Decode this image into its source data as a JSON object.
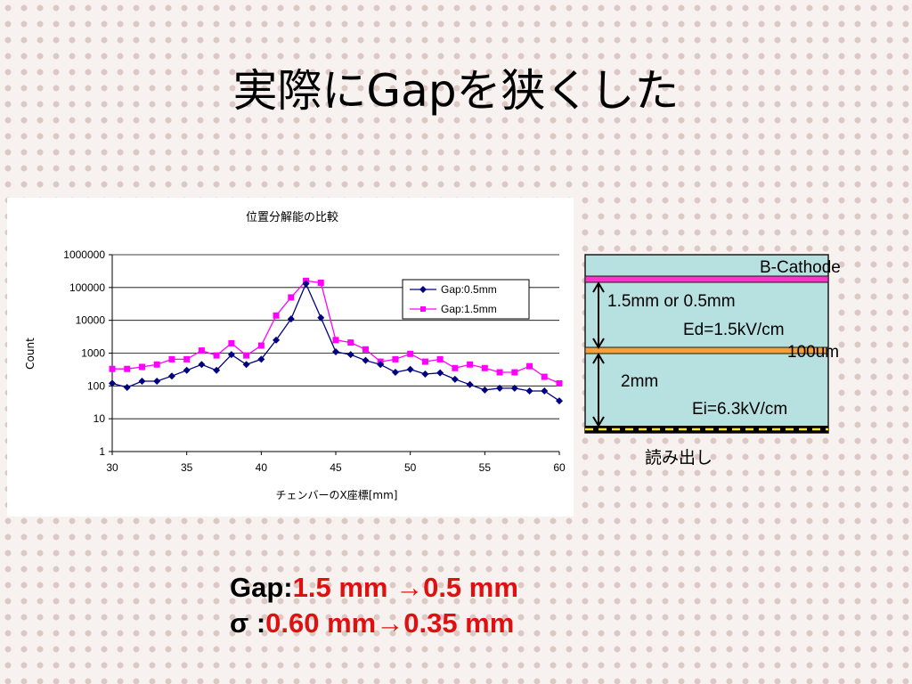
{
  "slide": {
    "title": "実際にGapを狭くした"
  },
  "chart_data": {
    "type": "line",
    "title": "位置分解能の比較",
    "xlabel": "チェンバーのX座標[mm]",
    "ylabel": "Count",
    "yscale": "log",
    "xlim": [
      30,
      60
    ],
    "ylim": [
      1,
      1000000
    ],
    "x_ticks": [
      30,
      35,
      40,
      45,
      50,
      55,
      60
    ],
    "y_ticks": [
      "1",
      "10",
      "100",
      "1000",
      "10000",
      "100000",
      "1000000"
    ],
    "grid": "horizontal",
    "legend": "top-right",
    "x": [
      30,
      31,
      32,
      33,
      34,
      35,
      36,
      37,
      38,
      39,
      40,
      41,
      42,
      43,
      44,
      45,
      46,
      47,
      48,
      49,
      50,
      51,
      52,
      53,
      54,
      55,
      56,
      57,
      58,
      59,
      60
    ],
    "series": [
      {
        "name": "Gap:0.5mm",
        "color": "#000080",
        "marker": "diamond",
        "values": [
          120,
          90,
          140,
          140,
          200,
          300,
          450,
          300,
          900,
          450,
          650,
          2500,
          11000,
          130000,
          12000,
          1100,
          900,
          600,
          450,
          260,
          320,
          230,
          250,
          160,
          110,
          75,
          85,
          85,
          70,
          70,
          35
        ]
      },
      {
        "name": "Gap:1.5mm",
        "color": "#ff00ff",
        "marker": "square",
        "values": [
          330,
          330,
          380,
          450,
          650,
          650,
          1200,
          850,
          2000,
          850,
          1700,
          14000,
          50000,
          160000,
          140000,
          2500,
          2100,
          1300,
          550,
          650,
          950,
          550,
          650,
          350,
          450,
          350,
          260,
          260,
          400,
          190,
          120
        ]
      }
    ]
  },
  "diagram": {
    "cathode_label": "B-Cathode",
    "gap_label": "1.5mm or 0.5mm",
    "ed_label": "Ed=1.5kV/cm",
    "mesh_label": "100um",
    "drift_label": "2mm",
    "ei_label": "Ei=6.3kV/cm",
    "readout_label": "読み出し",
    "colors": {
      "gas": "#b7e1e1",
      "cathode": "#ff33cc",
      "mesh": "#f5a033",
      "readout": "#000000",
      "readout_stripe": "#ffe800"
    }
  },
  "summary": {
    "gap_prefix": "Gap:",
    "gap_values": "1.5 mm  →0.5 mm",
    "sigma_prefix": "σ   :",
    "sigma_values": "0.60 mm→0.35 mm"
  }
}
